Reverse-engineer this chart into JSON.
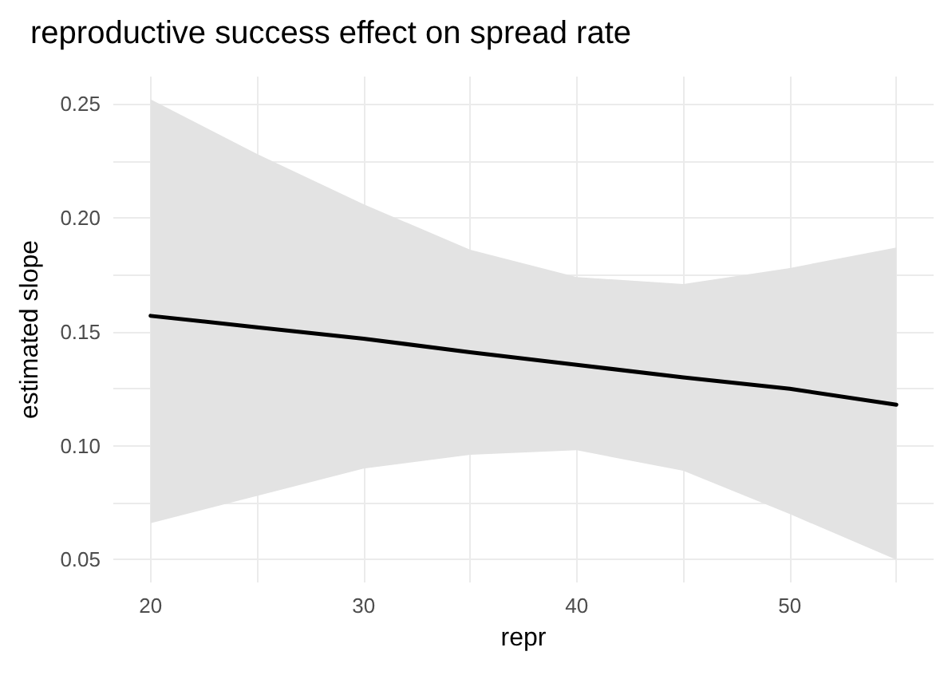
{
  "chart_data": {
    "type": "line",
    "title": "reproductive success effect on spread rate",
    "xlabel": "repr",
    "ylabel": "estimated slope",
    "x": [
      20,
      25,
      30,
      35,
      40,
      45,
      50,
      55
    ],
    "series": [
      {
        "color": "#000000",
        "values": [
          0.157,
          0.152,
          0.147,
          0.141,
          0.1355,
          0.13,
          0.125,
          0.118
        ],
        "lower": [
          0.066,
          0.078,
          0.09,
          0.096,
          0.098,
          0.089,
          0.07,
          0.05
        ],
        "upper": [
          0.252,
          0.228,
          0.206,
          0.186,
          0.174,
          0.171,
          0.178,
          0.187
        ]
      }
    ],
    "xlim": [
      18.25,
      56.75
    ],
    "ylim": [
      0.04,
      0.262
    ],
    "xticks": [
      20,
      {
        "value": 25,
        "label": null
      },
      30,
      {
        "value": 35,
        "label": null
      },
      40,
      {
        "value": 45,
        "label": null
      },
      50,
      {
        "value": 55,
        "label": null
      }
    ],
    "yticks": [
      0.05,
      {
        "value": 0.075,
        "label": null
      },
      "0.10",
      {
        "value": 0.125,
        "label": null
      },
      0.15,
      {
        "value": 0.175,
        "label": null
      },
      "0.20",
      {
        "value": 0.225,
        "label": null
      },
      0.25
    ],
    "grid": true,
    "marker": "none",
    "line_style": "solid"
  }
}
